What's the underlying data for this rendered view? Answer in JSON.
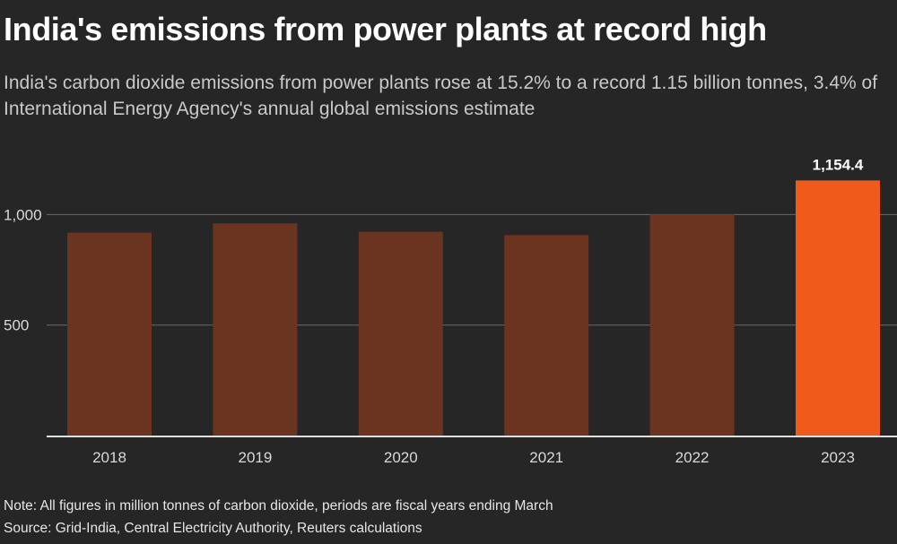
{
  "title": "India's emissions from power plants at record high",
  "subtitle": "India's carbon dioxide emissions from power plants rose at 15.2% to a record 1.15 billion tonnes, 3.4% of International Energy Agency's annual global emissions estimate",
  "note": "Note: All figures in million tonnes of carbon dioxide, periods are fiscal years ending March",
  "source": "Source: Grid-India, Central Electricity Authority, Reuters calculations",
  "colors": {
    "background": "#262626",
    "bar": "#6b3420",
    "highlight": "#f05a1a",
    "grid": "#6a6a6a",
    "axis_text": "#d9d9d9"
  },
  "chart_data": {
    "type": "bar",
    "categories": [
      "2018",
      "2019",
      "2020",
      "2021",
      "2022",
      "2023"
    ],
    "values": [
      918,
      960,
      922,
      907,
      1001,
      1154.4
    ],
    "highlight_index": 5,
    "data_labels": [
      {
        "index": 5,
        "text": "1,154.4"
      }
    ],
    "yticks": [
      {
        "value": 500,
        "label": "500"
      },
      {
        "value": 1000,
        "label": "1,000"
      }
    ],
    "ylim": [
      0,
      1250
    ],
    "xlabel": "",
    "ylabel": "",
    "grid": true,
    "legend": "none"
  }
}
